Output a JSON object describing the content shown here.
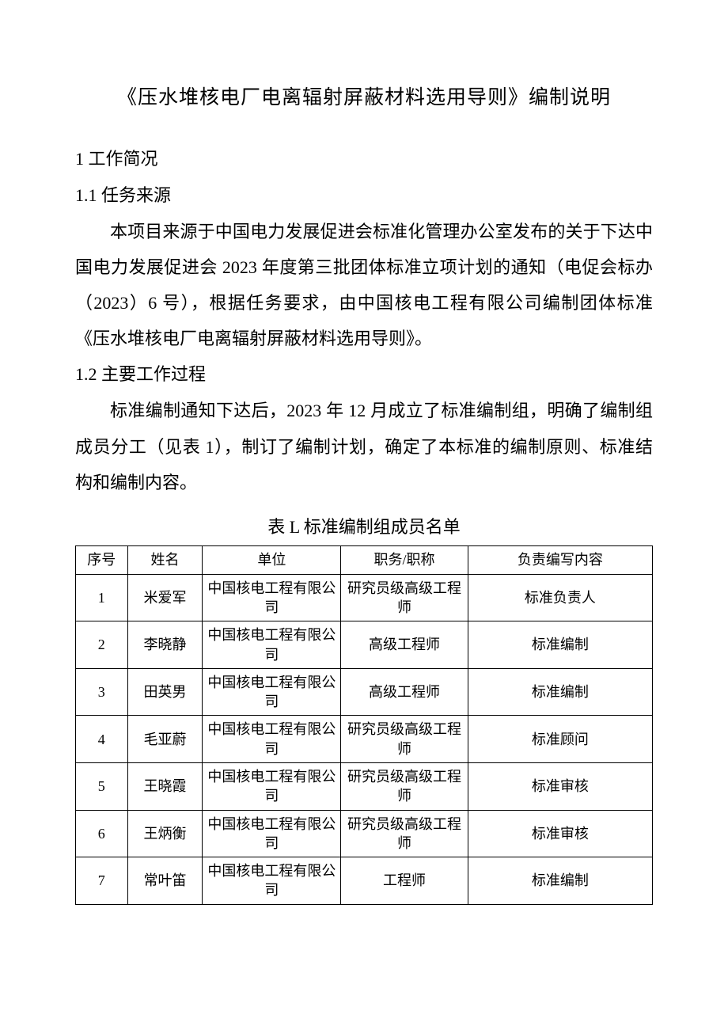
{
  "title": "《压水堆核电厂电离辐射屏蔽材料选用导则》编制说明",
  "section1": {
    "heading": "1 工作简况",
    "sub1": {
      "heading": "1.1 任务来源",
      "paragraph": "本项目来源于中国电力发展促进会标准化管理办公室发布的关于下达中国电力发展促进会 2023 年度第三批团体标准立项计划的通知（电促会标办（2023）6 号），根据任务要求，由中国核电工程有限公司编制团体标准《压水堆核电厂电离辐射屏蔽材料选用导则》。"
    },
    "sub2": {
      "heading": "1.2 主要工作过程",
      "paragraph": "标准编制通知下达后，2023 年 12 月成立了标准编制组，明确了编制组成员分工（见表 1），制订了编制计划，确定了本标准的编制原则、标准结构和编制内容。"
    }
  },
  "table": {
    "title": "表 L 标准编制组成员名单",
    "columns": [
      "序号",
      "姓名",
      "单位",
      "职务/职称",
      "负责编写内容"
    ],
    "rows": [
      [
        "1",
        "米爱军",
        "中国核电工程有限公司",
        "研究员级高级工程师",
        "标准负责人"
      ],
      [
        "2",
        "李晓静",
        "中国核电工程有限公司",
        "高级工程师",
        "标准编制"
      ],
      [
        "3",
        "田英男",
        "中国核电工程有限公司",
        "高级工程师",
        "标准编制"
      ],
      [
        "4",
        "毛亚蔚",
        "中国核电工程有限公司",
        "研究员级高级工程师",
        "标准顾问"
      ],
      [
        "5",
        "王晓霞",
        "中国核电工程有限公司",
        "研究员级高级工程师",
        "标准审核"
      ],
      [
        "6",
        "王炳衡",
        "中国核电工程有限公司",
        "研究员级高级工程师",
        "标准审核"
      ],
      [
        "7",
        "常叶笛",
        "中国核电工程有限公司",
        "工程师",
        "标准编制"
      ]
    ]
  }
}
